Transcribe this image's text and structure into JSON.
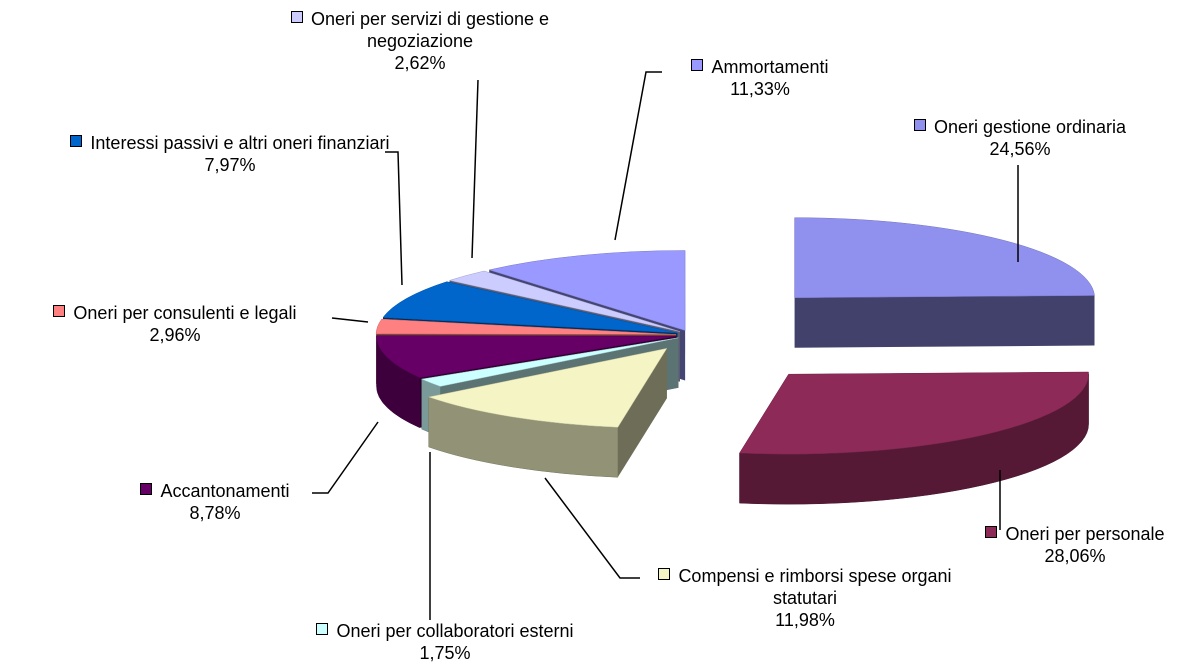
{
  "chart_data": {
    "type": "pie3d",
    "categories": [
      "Oneri gestione ordinaria",
      "Oneri per personale",
      "Compensi e rimborsi spese organi statutari",
      "Oneri per collaboratori esterni",
      "Accantonamenti",
      "Oneri per consulenti e legali",
      "Interessi passivi e altri oneri finanziari",
      "Oneri per servizi di gestione e negoziazione",
      "Ammortamenti"
    ],
    "values": [
      24.56,
      28.06,
      11.98,
      1.75,
      8.78,
      2.96,
      7.97,
      2.62,
      11.33
    ],
    "value_labels": [
      "24,56%",
      "28,06%",
      "11,98%",
      "1,75%",
      "8,78%",
      "2,96%",
      "7,97%",
      "2,62%",
      "11,33%"
    ],
    "colors": [
      "#9090ee",
      "#8e2a58",
      "#f4f4c4",
      "#ccffff",
      "#660066",
      "#ff8080",
      "#0066cc",
      "#ccccff",
      "#9999ff"
    ]
  }
}
